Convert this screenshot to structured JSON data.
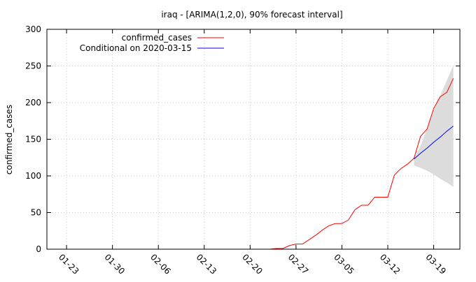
{
  "chart_data": {
    "type": "line",
    "title": "iraq -  [ARIMA(1,2,0), 90% forecast interval]",
    "ylabel": "confirmed_cases",
    "xlabel": "",
    "x_start": "2020-01-20",
    "x_end": "2020-03-23",
    "ylim": [
      0,
      300
    ],
    "yticks": [
      0,
      50,
      100,
      150,
      200,
      250,
      300
    ],
    "xtick_dates": [
      "2020-01-23",
      "2020-01-30",
      "2020-02-06",
      "2020-02-13",
      "2020-02-20",
      "2020-02-27",
      "2020-03-05",
      "2020-03-12",
      "2020-03-19"
    ],
    "xtick_labels": [
      "01-23",
      "01-30",
      "02-06",
      "02-13",
      "02-20",
      "02-27",
      "03-05",
      "03-12",
      "03-19"
    ],
    "grid": true,
    "legend_position": "top-left",
    "series": [
      {
        "name": "confirmed_cases",
        "color": "#ff0000",
        "points": [
          [
            "2020-02-22",
            0
          ],
          [
            "2020-02-23",
            0
          ],
          [
            "2020-02-24",
            1
          ],
          [
            "2020-02-25",
            1
          ],
          [
            "2020-02-26",
            5
          ],
          [
            "2020-02-27",
            7
          ],
          [
            "2020-02-28",
            7
          ],
          [
            "2020-02-29",
            13
          ],
          [
            "2020-03-01",
            19
          ],
          [
            "2020-03-02",
            26
          ],
          [
            "2020-03-03",
            32
          ],
          [
            "2020-03-04",
            35
          ],
          [
            "2020-03-05",
            35
          ],
          [
            "2020-03-06",
            40
          ],
          [
            "2020-03-07",
            54
          ],
          [
            "2020-03-08",
            60
          ],
          [
            "2020-03-09",
            60
          ],
          [
            "2020-03-10",
            71
          ],
          [
            "2020-03-11",
            71
          ],
          [
            "2020-03-12",
            71
          ],
          [
            "2020-03-13",
            101
          ],
          [
            "2020-03-14",
            110
          ],
          [
            "2020-03-15",
            116
          ],
          [
            "2020-03-16",
            124
          ],
          [
            "2020-03-17",
            154
          ],
          [
            "2020-03-18",
            164
          ],
          [
            "2020-03-19",
            192
          ],
          [
            "2020-03-20",
            208
          ],
          [
            "2020-03-21",
            214
          ],
          [
            "2020-03-22",
            233
          ]
        ]
      },
      {
        "name": "Conditional on 2020-03-15",
        "color": "#0000ff",
        "points": [
          [
            "2020-03-16",
            123
          ],
          [
            "2020-03-17",
            131
          ],
          [
            "2020-03-18",
            138
          ],
          [
            "2020-03-19",
            146
          ],
          [
            "2020-03-20",
            153
          ],
          [
            "2020-03-21",
            161
          ],
          [
            "2020-03-22",
            168
          ]
        ]
      }
    ],
    "interval": {
      "label": "90% forecast interval",
      "color": "#dcdcdc",
      "dates": [
        "2020-03-16",
        "2020-03-17",
        "2020-03-18",
        "2020-03-19",
        "2020-03-20",
        "2020-03-21",
        "2020-03-22"
      ],
      "lower": [
        114,
        111,
        107,
        102,
        96,
        91,
        85
      ],
      "upper": [
        123,
        141,
        165,
        190,
        210,
        230,
        251
      ]
    }
  }
}
